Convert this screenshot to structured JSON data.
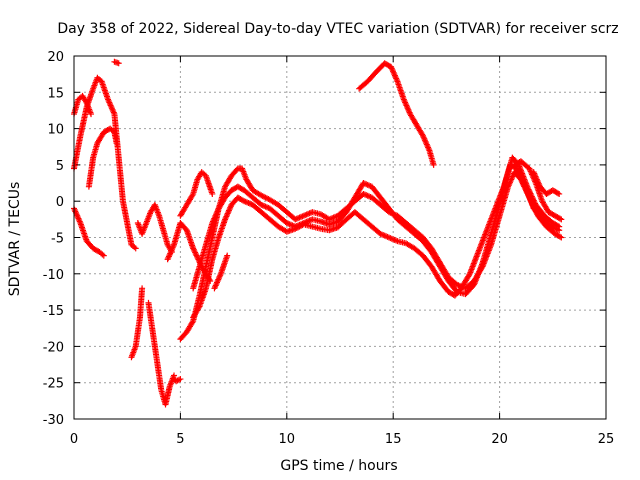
{
  "chart_data": {
    "type": "scatter",
    "title": "Day 358 of 2022, Sidereal Day-to-day VTEC variation (SDTVAR) for receiver scrz",
    "xlabel": "GPS time / hours",
    "ylabel": "SDTVAR / TECUs",
    "xlim": [
      0,
      25
    ],
    "ylim": [
      -30,
      20
    ],
    "xticks": [
      0,
      5,
      10,
      15,
      20,
      25
    ],
    "yticks": [
      -30,
      -25,
      -20,
      -15,
      -10,
      -5,
      0,
      5,
      10,
      15,
      20
    ],
    "grid": true,
    "marker": "+",
    "color": "#ff0000",
    "series": [
      {
        "name": "trace-1",
        "points": [
          [
            0.0,
            -1
          ],
          [
            0.3,
            -3
          ],
          [
            0.6,
            -5.5
          ],
          [
            0.9,
            -6.5
          ],
          [
            1.2,
            -7
          ],
          [
            1.4,
            -7.5
          ]
        ]
      },
      {
        "name": "trace-2",
        "points": [
          [
            0.0,
            4.5
          ],
          [
            0.3,
            9
          ],
          [
            0.6,
            13
          ],
          [
            0.9,
            15.5
          ],
          [
            1.1,
            17
          ],
          [
            1.3,
            16.5
          ],
          [
            1.6,
            14
          ],
          [
            1.9,
            12
          ],
          [
            2.1,
            6
          ],
          [
            2.3,
            0
          ],
          [
            2.5,
            -3
          ],
          [
            2.7,
            -6
          ],
          [
            2.9,
            -6.5
          ]
        ]
      },
      {
        "name": "trace-3",
        "points": [
          [
            0.0,
            12
          ],
          [
            0.2,
            14
          ],
          [
            0.4,
            14.5
          ],
          [
            0.6,
            13.5
          ],
          [
            0.8,
            12
          ]
        ]
      },
      {
        "name": "trace-4",
        "points": [
          [
            0.7,
            2
          ],
          [
            0.9,
            6
          ],
          [
            1.1,
            8
          ],
          [
            1.4,
            9.5
          ],
          [
            1.7,
            10
          ],
          [
            1.9,
            9.5
          ],
          [
            2.0,
            8
          ]
        ]
      },
      {
        "name": "trace-5",
        "points": [
          [
            2.7,
            -21.5
          ],
          [
            2.9,
            -20
          ],
          [
            3.1,
            -16
          ],
          [
            3.2,
            -12
          ]
        ]
      },
      {
        "name": "trace-6",
        "points": [
          [
            3.5,
            -14
          ],
          [
            3.7,
            -18
          ],
          [
            3.9,
            -22
          ],
          [
            4.1,
            -26
          ],
          [
            4.3,
            -28
          ],
          [
            4.5,
            -25.5
          ],
          [
            4.7,
            -24
          ]
        ]
      },
      {
        "name": "trace-7",
        "points": [
          [
            3.0,
            -3
          ],
          [
            3.2,
            -4.5
          ],
          [
            3.4,
            -3
          ],
          [
            3.6,
            -1.5
          ],
          [
            3.8,
            -0.5
          ],
          [
            4.0,
            -2
          ],
          [
            4.2,
            -4
          ],
          [
            4.4,
            -6
          ],
          [
            4.6,
            -7
          ]
        ]
      },
      {
        "name": "trace-8",
        "points": [
          [
            4.4,
            -8
          ],
          [
            4.7,
            -6
          ],
          [
            5.0,
            -3
          ],
          [
            5.3,
            -4
          ],
          [
            5.6,
            -6.5
          ],
          [
            6.0,
            -9
          ],
          [
            6.4,
            -11
          ]
        ]
      },
      {
        "name": "trace-9",
        "points": [
          [
            5.0,
            -2
          ],
          [
            5.3,
            -0.5
          ],
          [
            5.6,
            1
          ],
          [
            5.8,
            3
          ],
          [
            6.0,
            4
          ],
          [
            6.2,
            3.5
          ],
          [
            6.5,
            1
          ]
        ]
      },
      {
        "name": "trace-10",
        "points": [
          [
            4.7,
            -24.5
          ],
          [
            4.8,
            -24.8
          ],
          [
            5.0,
            -24.5
          ]
        ]
      },
      {
        "name": "trace-11",
        "points": [
          [
            5.0,
            -19
          ],
          [
            5.3,
            -18
          ],
          [
            5.6,
            -16.5
          ],
          [
            5.9,
            -13
          ],
          [
            6.2,
            -9
          ],
          [
            6.5,
            -5
          ],
          [
            6.8,
            -1
          ],
          [
            7.1,
            2
          ],
          [
            7.4,
            3.5
          ],
          [
            7.7,
            4.5
          ],
          [
            7.9,
            4.5
          ],
          [
            8.1,
            3
          ],
          [
            8.4,
            1.5
          ],
          [
            8.8,
            0.8
          ],
          [
            9.2,
            0.2
          ],
          [
            9.6,
            -0.5
          ],
          [
            10.0,
            -1.5
          ],
          [
            10.4,
            -2.5
          ],
          [
            10.8,
            -2
          ],
          [
            11.2,
            -1.5
          ],
          [
            11.6,
            -1.8
          ],
          [
            12.0,
            -2.5
          ],
          [
            12.4,
            -2
          ],
          [
            12.8,
            -1
          ],
          [
            13.2,
            0
          ],
          [
            13.6,
            1
          ],
          [
            14.0,
            0.5
          ],
          [
            14.4,
            -0.5
          ],
          [
            14.8,
            -1.5
          ],
          [
            15.2,
            -2
          ],
          [
            15.6,
            -3
          ],
          [
            16.0,
            -4
          ],
          [
            16.4,
            -5
          ],
          [
            16.8,
            -6.5
          ],
          [
            17.2,
            -8.5
          ],
          [
            17.6,
            -10.5
          ],
          [
            18.0,
            -11.5
          ],
          [
            18.4,
            -12
          ],
          [
            18.8,
            -11
          ],
          [
            19.2,
            -9
          ],
          [
            19.6,
            -6
          ],
          [
            20.0,
            -2
          ],
          [
            20.4,
            2
          ],
          [
            20.7,
            4
          ],
          [
            21.0,
            3
          ],
          [
            21.4,
            0.5
          ],
          [
            21.8,
            -2
          ],
          [
            22.2,
            -3.5
          ],
          [
            22.6,
            -4.5
          ],
          [
            22.9,
            -5
          ]
        ]
      },
      {
        "name": "trace-12",
        "points": [
          [
            5.6,
            -16
          ],
          [
            5.9,
            -14.5
          ],
          [
            6.2,
            -12
          ],
          [
            6.5,
            -8
          ],
          [
            6.8,
            -5
          ],
          [
            7.1,
            -2.5
          ],
          [
            7.4,
            -0.5
          ],
          [
            7.7,
            0.5
          ],
          [
            8.0,
            0
          ],
          [
            8.4,
            -0.5
          ],
          [
            8.8,
            -1.5
          ],
          [
            9.2,
            -2.5
          ],
          [
            9.6,
            -3.5
          ],
          [
            10.0,
            -4.2
          ],
          [
            10.4,
            -3.8
          ],
          [
            10.8,
            -3.2
          ],
          [
            11.2,
            -3.5
          ],
          [
            11.6,
            -3.8
          ],
          [
            12.0,
            -4
          ],
          [
            12.4,
            -3.6
          ],
          [
            12.8,
            -2.5
          ],
          [
            13.2,
            -1.5
          ],
          [
            13.6,
            -2.5
          ],
          [
            14.0,
            -3.5
          ],
          [
            14.4,
            -4.5
          ],
          [
            14.8,
            -5
          ],
          [
            15.2,
            -5.5
          ],
          [
            15.6,
            -5.8
          ],
          [
            16.0,
            -6.5
          ],
          [
            16.4,
            -7.5
          ],
          [
            16.8,
            -9
          ],
          [
            17.2,
            -11
          ],
          [
            17.6,
            -12.5
          ],
          [
            17.9,
            -13
          ],
          [
            18.2,
            -12
          ],
          [
            18.6,
            -10
          ],
          [
            19.0,
            -7
          ],
          [
            19.4,
            -4
          ],
          [
            19.8,
            -1
          ],
          [
            20.2,
            2
          ],
          [
            20.5,
            5
          ],
          [
            20.8,
            4.5
          ],
          [
            21.2,
            2
          ],
          [
            21.6,
            -1
          ],
          [
            22.0,
            -2.5
          ],
          [
            22.4,
            -3.5
          ],
          [
            22.8,
            -4
          ]
        ]
      },
      {
        "name": "trace-13",
        "points": [
          [
            6.6,
            -12
          ],
          [
            6.9,
            -10
          ],
          [
            7.2,
            -7.5
          ]
        ]
      },
      {
        "name": "trace-14",
        "points": [
          [
            5.6,
            -12
          ],
          [
            5.9,
            -9
          ],
          [
            6.2,
            -6
          ],
          [
            6.5,
            -3
          ],
          [
            6.8,
            -1
          ],
          [
            7.1,
            0.5
          ],
          [
            7.4,
            1.5
          ],
          [
            7.7,
            2
          ],
          [
            8.0,
            1.5
          ],
          [
            8.4,
            0.5
          ],
          [
            8.8,
            -0.5
          ],
          [
            9.2,
            -1
          ],
          [
            9.6,
            -2
          ],
          [
            10.0,
            -3
          ],
          [
            10.4,
            -3.5
          ],
          [
            10.8,
            -3
          ],
          [
            11.2,
            -2.5
          ],
          [
            11.6,
            -2.8
          ],
          [
            12.0,
            -3.2
          ],
          [
            12.4,
            -2.8
          ],
          [
            12.8,
            -1.5
          ],
          [
            13.2,
            0.5
          ],
          [
            13.6,
            2.5
          ],
          [
            14.0,
            2
          ],
          [
            14.4,
            0.5
          ],
          [
            14.8,
            -1
          ],
          [
            15.2,
            -2.5
          ],
          [
            15.6,
            -3.5
          ],
          [
            16.0,
            -4.5
          ],
          [
            16.4,
            -5.5
          ],
          [
            16.8,
            -7
          ],
          [
            17.2,
            -9
          ],
          [
            17.6,
            -11
          ],
          [
            18.0,
            -12.5
          ],
          [
            18.4,
            -12.8
          ],
          [
            18.8,
            -11.5
          ],
          [
            19.2,
            -8.5
          ],
          [
            19.6,
            -4.5
          ],
          [
            20.0,
            -0.5
          ],
          [
            20.3,
            3
          ],
          [
            20.6,
            6
          ],
          [
            20.9,
            5
          ],
          [
            21.3,
            2
          ],
          [
            21.7,
            -0.5
          ],
          [
            22.1,
            -2
          ],
          [
            22.5,
            -3
          ],
          [
            22.8,
            -3.5
          ]
        ]
      },
      {
        "name": "trace-15",
        "points": [
          [
            13.4,
            15.5
          ],
          [
            13.8,
            16.5
          ],
          [
            14.2,
            17.8
          ],
          [
            14.6,
            19
          ],
          [
            14.9,
            18.5
          ],
          [
            15.2,
            16.5
          ],
          [
            15.5,
            14
          ],
          [
            15.8,
            12
          ],
          [
            16.1,
            10.5
          ],
          [
            16.4,
            9
          ],
          [
            16.7,
            7
          ],
          [
            16.9,
            5
          ]
        ]
      },
      {
        "name": "trace-16",
        "points": [
          [
            20.7,
            5
          ],
          [
            21.0,
            5.5
          ],
          [
            21.4,
            4.5
          ],
          [
            21.7,
            2.5
          ],
          [
            22.0,
            0
          ],
          [
            22.3,
            -1.5
          ],
          [
            22.6,
            -2
          ],
          [
            22.9,
            -2.5
          ]
        ]
      },
      {
        "name": "trace-17",
        "points": [
          [
            21.6,
            4
          ],
          [
            21.9,
            2
          ],
          [
            22.2,
            1
          ],
          [
            22.5,
            1.5
          ],
          [
            22.8,
            1
          ]
        ]
      },
      {
        "name": "trace-18",
        "points": [
          [
            1.9,
            19.2
          ],
          [
            2.1,
            19
          ]
        ]
      }
    ]
  }
}
